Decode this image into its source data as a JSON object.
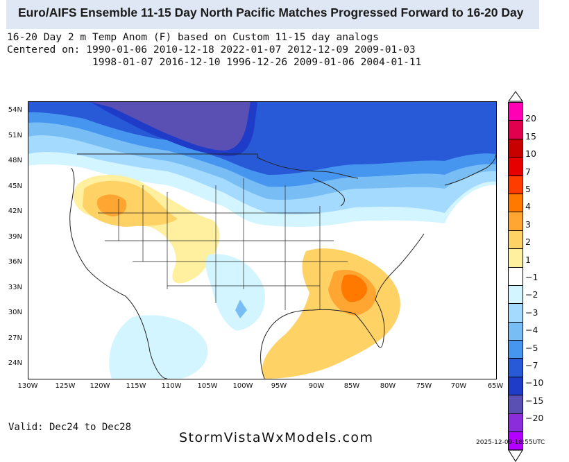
{
  "title": "Euro/AIFS Ensemble 11-15 Day North Pacific Matches Progressed Forward to 16-20 Day",
  "subtitle": {
    "line1": "16-20 Day 2 m Temp Anom (F) based on Custom 11-15 day analogs",
    "line2": "Centered on: 1990-01-06 2010-12-18 2022-01-07 2012-12-09 2009-01-03",
    "line3": "              1998-01-07 2016-12-10 1996-12-26 2009-01-06 2004-01-11"
  },
  "map": {
    "lat_labels": [
      "54N",
      "51N",
      "48N",
      "45N",
      "42N",
      "39N",
      "36N",
      "33N",
      "30N",
      "27N",
      "24N"
    ],
    "lon_labels": [
      "130W",
      "125W",
      "120W",
      "115W",
      "110W",
      "105W",
      "100W",
      "95W",
      "90W",
      "85W",
      "80W",
      "75W",
      "70W",
      "65W"
    ]
  },
  "colorbar": {
    "labels": [
      "20",
      "15",
      "10",
      "7",
      "5",
      "4",
      "3",
      "2",
      "1",
      "−1",
      "−2",
      "−3",
      "−4",
      "−5",
      "−7",
      "−10",
      "−15",
      "−20"
    ],
    "colors": [
      "#ff00b4",
      "#e0004e",
      "#c80000",
      "#e60000",
      "#ff3c00",
      "#ff7800",
      "#ffa532",
      "#ffd266",
      "#fff0a0",
      "#ffffff",
      "#d2f5ff",
      "#a5daff",
      "#78bef5",
      "#4696f0",
      "#285ad7",
      "#1e3cc8",
      "#5a50b4",
      "#8c2ddc",
      "#b400ff"
    ]
  },
  "footer": {
    "valid": "Valid: Dec24 to Dec28",
    "brand": "StormVistaWxModels.com",
    "timestamp": "2025-12-09-18:55UTC"
  }
}
